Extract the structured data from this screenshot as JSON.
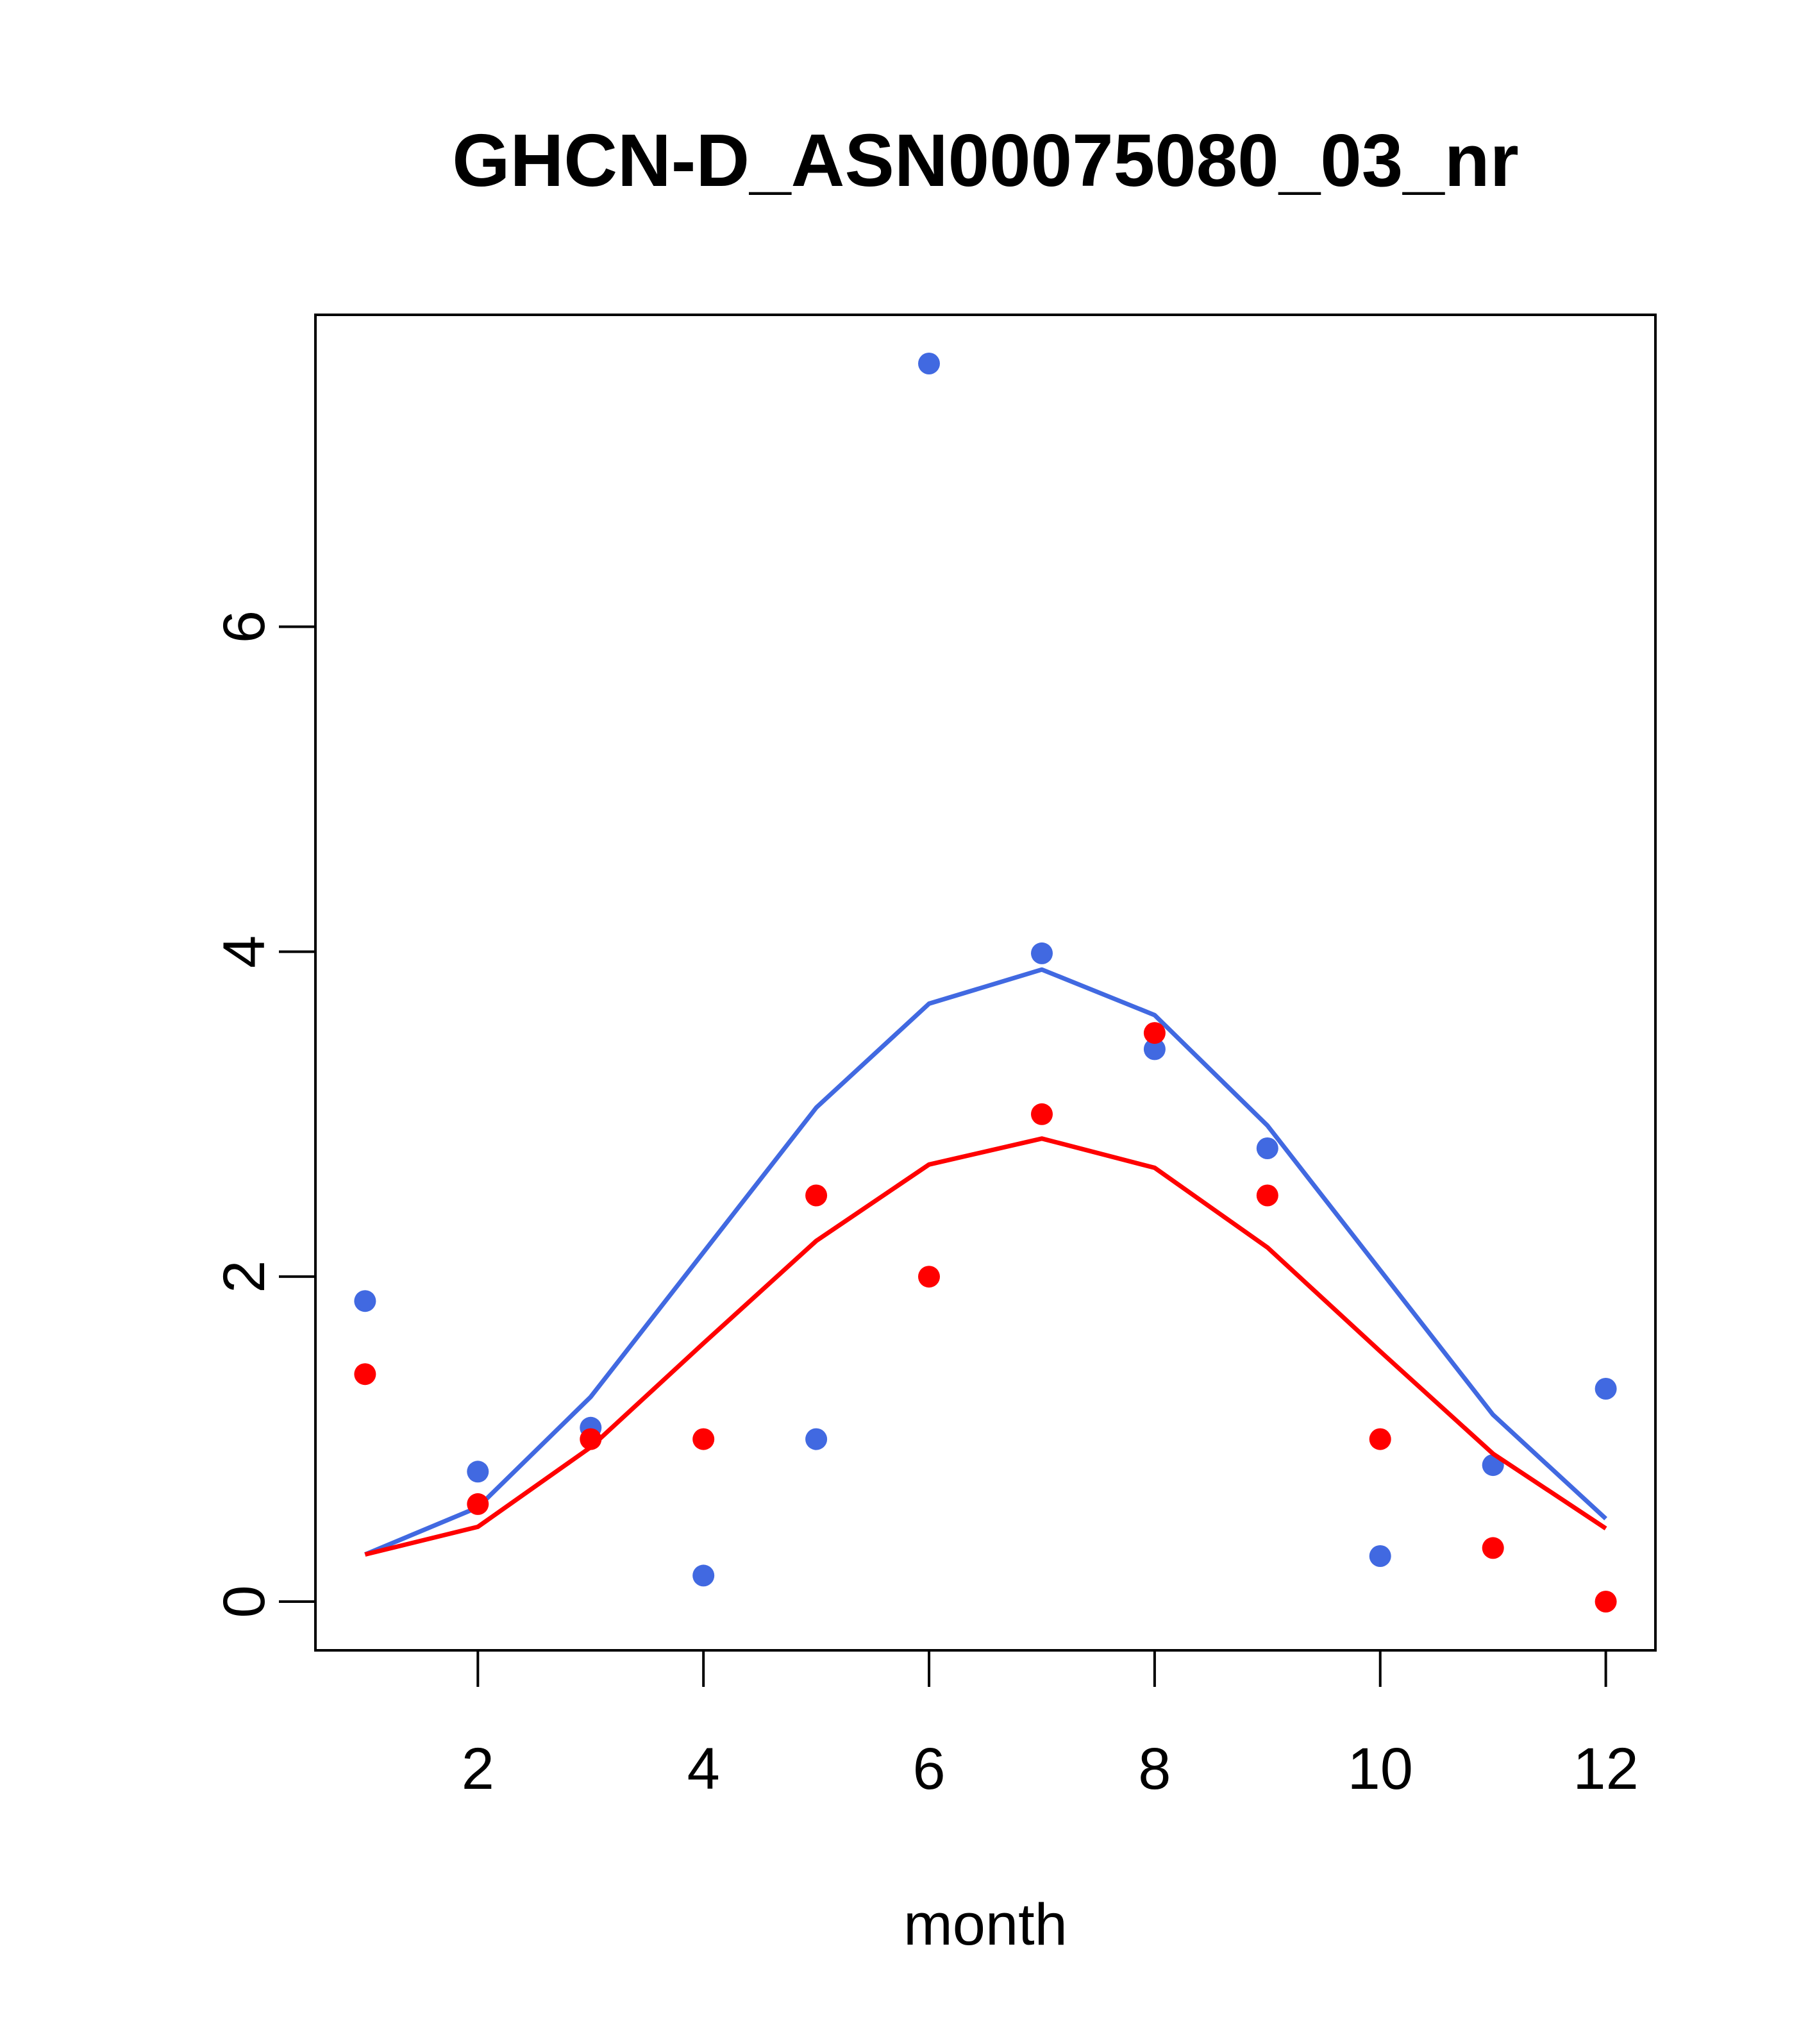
{
  "chart_data": {
    "type": "scatter",
    "title": "GHCN-D_ASN00075080_03_nr",
    "xlabel": "month",
    "ylabel": "",
    "xlim": [
      0.56,
      12.44
    ],
    "ylim": [
      -0.3,
      7.92
    ],
    "x_ticks": [
      2,
      4,
      6,
      8,
      10,
      12
    ],
    "y_ticks": [
      0,
      2,
      4,
      6
    ],
    "grid": false,
    "legend": "none",
    "series": [
      {
        "color": "#4169E1",
        "points_x": [
          1,
          2,
          3,
          4,
          5,
          6,
          7,
          8,
          9,
          10,
          11,
          12
        ],
        "points_y": [
          1.85,
          0.8,
          1.07,
          0.16,
          1.0,
          7.62,
          3.99,
          3.4,
          2.79,
          0.28,
          0.84,
          1.31
        ],
        "line_x": [
          1,
          2,
          3,
          4,
          5,
          6,
          7,
          8,
          9,
          10,
          11,
          12
        ],
        "line_y": [
          0.29,
          0.58,
          1.26,
          2.15,
          3.04,
          3.68,
          3.89,
          3.61,
          2.93,
          2.04,
          1.15,
          0.51
        ]
      },
      {
        "color": "#FF0000",
        "points_x": [
          1,
          2,
          3,
          4,
          5,
          6,
          7,
          8,
          9,
          10,
          11,
          12
        ],
        "points_y": [
          1.4,
          0.6,
          1.0,
          1.0,
          2.5,
          2.0,
          3.0,
          3.5,
          2.5,
          1.0,
          0.33,
          0.0
        ],
        "line_x": [
          1,
          2,
          3,
          4,
          5,
          6,
          7,
          8,
          9,
          10,
          11,
          12
        ],
        "line_y": [
          0.29,
          0.46,
          0.95,
          1.59,
          2.22,
          2.69,
          2.85,
          2.67,
          2.18,
          1.54,
          0.91,
          0.45
        ]
      }
    ]
  }
}
